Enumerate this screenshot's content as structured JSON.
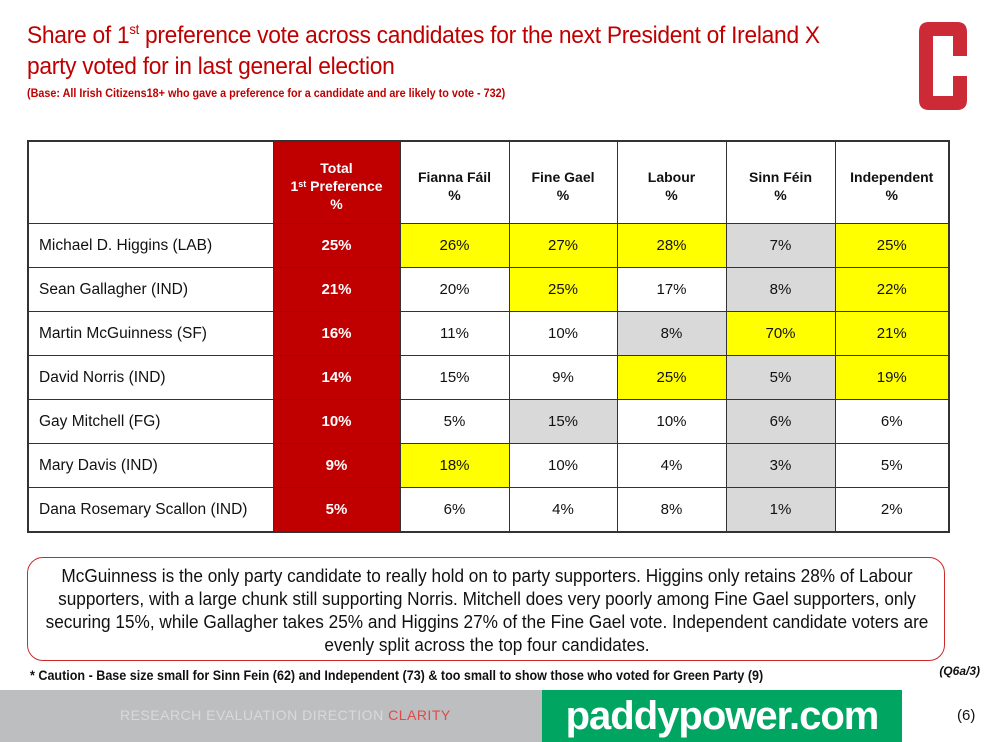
{
  "header": {
    "title_part1": "Share of 1",
    "title_sup": "st",
    "title_part2": " preference vote across candidates for the next President of Ireland X party voted for in last general election",
    "subtitle": "(Base: All Irish Citizens18+ who gave a preference for a candidate and are likely to vote - 732)",
    "logo_letter": "C"
  },
  "colors": {
    "brand_red": "#c00000",
    "highlight_yellow": "#ffff00",
    "highlight_grey": "#d9d9d9",
    "paddypower_green": "#00a562"
  },
  "table": {
    "columns": [
      {
        "line1": "Total",
        "line2_num": "1",
        "line2_sup": "st",
        "line2_rest": " Preference",
        "line3": "%"
      },
      {
        "line1": "Fianna Fáil",
        "line2": "%"
      },
      {
        "line1": "Fine Gael",
        "line2": "%"
      },
      {
        "line1": "Labour",
        "line2": "%"
      },
      {
        "line1": "Sinn Féin",
        "line2": "%"
      },
      {
        "line1": "Independent",
        "line2": "%"
      }
    ],
    "rows": [
      {
        "name": "Michael D. Higgins (LAB)",
        "values": [
          "25%",
          "26%",
          "27%",
          "28%",
          "7%",
          "25%"
        ],
        "highlight": [
          "total",
          "yellow",
          "yellow",
          "yellow",
          "grey",
          "yellow"
        ]
      },
      {
        "name": "Sean Gallagher (IND)",
        "values": [
          "21%",
          "20%",
          "25%",
          "17%",
          "8%",
          "22%"
        ],
        "highlight": [
          "total",
          "none",
          "yellow",
          "none",
          "grey",
          "yellow"
        ]
      },
      {
        "name": "Martin McGuinness (SF)",
        "values": [
          "16%",
          "11%",
          "10%",
          "8%",
          "70%",
          "21%"
        ],
        "highlight": [
          "total",
          "none",
          "none",
          "grey",
          "yellow",
          "yellow"
        ]
      },
      {
        "name": "David Norris (IND)",
        "values": [
          "14%",
          "15%",
          "9%",
          "25%",
          "5%",
          "19%"
        ],
        "highlight": [
          "total",
          "none",
          "none",
          "yellow",
          "grey",
          "yellow"
        ]
      },
      {
        "name": "Gay Mitchell (FG)",
        "values": [
          "10%",
          "5%",
          "15%",
          "10%",
          "6%",
          "6%"
        ],
        "highlight": [
          "total",
          "none",
          "grey",
          "none",
          "grey",
          "none"
        ]
      },
      {
        "name": "Mary Davis (IND)",
        "values": [
          "9%",
          "18%",
          "10%",
          "4%",
          "3%",
          "5%"
        ],
        "highlight": [
          "total",
          "yellow",
          "none",
          "none",
          "grey",
          "none"
        ]
      },
      {
        "name": "Dana Rosemary Scallon (IND)",
        "values": [
          "5%",
          "6%",
          "4%",
          "8%",
          "1%",
          "2%"
        ],
        "highlight": [
          "total",
          "none",
          "none",
          "none",
          "grey",
          "none"
        ]
      }
    ]
  },
  "callout": {
    "text": "McGuinness is the only party candidate to really hold on to party supporters.  Higgins only retains 28% of Labour supporters, with a large chunk still supporting Norris.  Mitchell does very poorly among Fine Gael supporters, only securing 15%, while Gallagher takes 25% and Higgins 27% of the Fine Gael vote. Independent candidate voters are evenly split across the top four candidates."
  },
  "question_ref": "(Q6a/3)",
  "footer": {
    "tagline_main": "RESEARCH EVALUATION DIRECTION ",
    "tagline_accent": "CLARITY",
    "sponsor": "paddypower.com",
    "caution": "* Caution - Base size small for Sinn Fein (62) and Independent (73) & too small to show those who voted for Green Party (9)",
    "page_number": "(6)"
  }
}
